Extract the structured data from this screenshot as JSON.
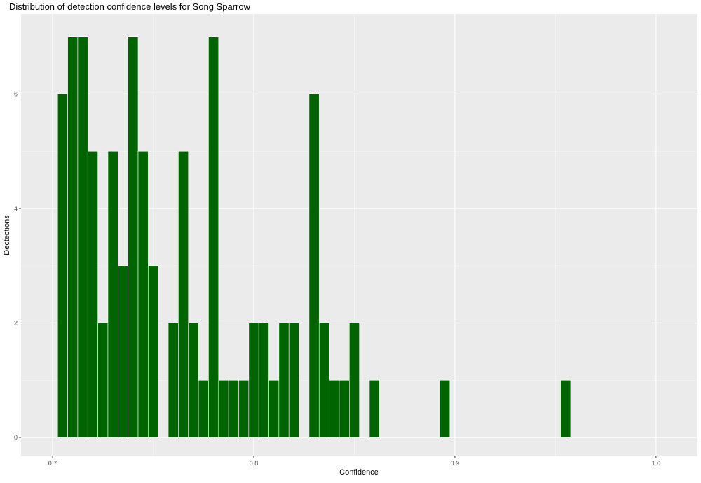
{
  "chart_data": {
    "type": "histogram",
    "title": "Distribution of detection confidence levels for Song Sparrow",
    "x_label": "Confidence",
    "y_label": "Dectections",
    "color": "#006400",
    "bins": [
      0.7025,
      0.7075,
      0.7125,
      0.7175,
      0.7225,
      0.7275,
      0.7325,
      0.7375,
      0.7425,
      0.7475,
      0.7525,
      0.7575,
      0.7625,
      0.7675,
      0.7725,
      0.7775,
      0.7825,
      0.7875,
      0.7925,
      0.7975,
      0.8025,
      0.8075,
      0.8125,
      0.8175,
      0.8225,
      0.8275,
      0.8325,
      0.8375,
      0.8425,
      0.8475,
      0.8525,
      0.8575,
      0.8625,
      0.8675,
      0.8725,
      0.8775,
      0.8825,
      0.8875,
      0.8925,
      0.8975,
      0.9025,
      0.9075,
      0.9125,
      0.9175,
      0.9225,
      0.9275,
      0.9325,
      0.9375,
      0.9425,
      0.9475,
      0.9525,
      0.9575
    ],
    "values": [
      6,
      7,
      7,
      5,
      2,
      5,
      3,
      7,
      5,
      3,
      0,
      2,
      5,
      2,
      1,
      7,
      1,
      1,
      1,
      2,
      2,
      1,
      2,
      2,
      0,
      6,
      2,
      1,
      1,
      2,
      0,
      1,
      0,
      0,
      0,
      0,
      0,
      0,
      1,
      0,
      0,
      0,
      0,
      0,
      0,
      0,
      0,
      0,
      0,
      0,
      1
    ],
    "xlim": [
      0.6843,
      1.0206
    ],
    "xticks": [
      0.7,
      0.8,
      0.9,
      {
        "value": 1.0,
        "label": "1.0"
      }
    ],
    "ylim": [
      -0.33,
      7.4
    ],
    "yticks": [
      0,
      2,
      4,
      6
    ],
    "grid": true
  }
}
